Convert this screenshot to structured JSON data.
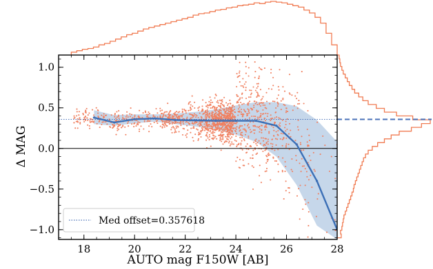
{
  "chart_data": {
    "type": "scatter",
    "xlabel": "AUTO mag F150W [AB]",
    "ylabel": "Δ MAG",
    "xlim": [
      17,
      28
    ],
    "ylim": [
      -1.12,
      1.15
    ],
    "xticks": [
      18,
      20,
      22,
      24,
      26,
      28
    ],
    "yticks": [
      -1.0,
      -0.5,
      0.0,
      0.5,
      1.0
    ],
    "ytick_labels": [
      "−1.0",
      "−0.5",
      "0.0",
      "0.5",
      "1.0"
    ],
    "median_offset": 0.357618,
    "legend": {
      "label": "Med offset=0.357618",
      "position": "lower-left"
    },
    "median_curve": {
      "x": [
        18.4,
        19.2,
        20.0,
        20.8,
        21.6,
        22.4,
        23.2,
        24.0,
        24.8,
        25.6,
        26.4,
        27.2,
        28.0
      ],
      "y": [
        0.38,
        0.32,
        0.36,
        0.37,
        0.35,
        0.345,
        0.34,
        0.34,
        0.34,
        0.28,
        0.05,
        -0.4,
        -1.0
      ],
      "band_low": [
        0.3,
        0.28,
        0.31,
        0.33,
        0.3,
        0.27,
        0.24,
        0.17,
        0.08,
        -0.1,
        -0.45,
        -0.95,
        -1.12
      ],
      "band_high": [
        0.47,
        0.41,
        0.42,
        0.42,
        0.43,
        0.45,
        0.48,
        0.53,
        0.57,
        0.57,
        0.52,
        0.35,
        0.08
      ]
    },
    "scatter_samples": {
      "count": 1700,
      "x_range": [
        17.6,
        28.0
      ],
      "note_color": "#e8704a"
    },
    "colors": {
      "points": "#f08060",
      "median": "#3b6fb6",
      "band": "#bcd0e6",
      "offset_line": "#4a72b8",
      "zero_line": "#000000",
      "hist": "#f07a50"
    },
    "top_histogram": {
      "bins_x_start": 17.5,
      "bins_x_end": 28.0,
      "counts": [
        4,
        6,
        8,
        9,
        11,
        14,
        16,
        19,
        22,
        25,
        28,
        30,
        33,
        36,
        38,
        40,
        42,
        44,
        46,
        48,
        50,
        52,
        55,
        57,
        58,
        60,
        62,
        63,
        65,
        66,
        68,
        69,
        70,
        72,
        71,
        73,
        74,
        73,
        72,
        70,
        68,
        66,
        62,
        58,
        52,
        44,
        30,
        14
      ]
    },
    "right_histogram": {
      "bins_y_start": -1.1,
      "bins_y_end": 1.15,
      "counts": [
        6,
        5,
        7,
        8,
        9,
        10,
        12,
        14,
        16,
        18,
        20,
        22,
        24,
        25,
        27,
        29,
        31,
        33,
        35,
        37,
        39,
        42,
        46,
        52,
        60,
        70,
        80,
        92,
        110,
        125,
        138,
        112,
        88,
        70,
        58,
        46,
        38,
        32,
        26,
        22,
        18,
        15,
        12,
        9,
        7,
        5,
        4,
        3
      ]
    }
  }
}
